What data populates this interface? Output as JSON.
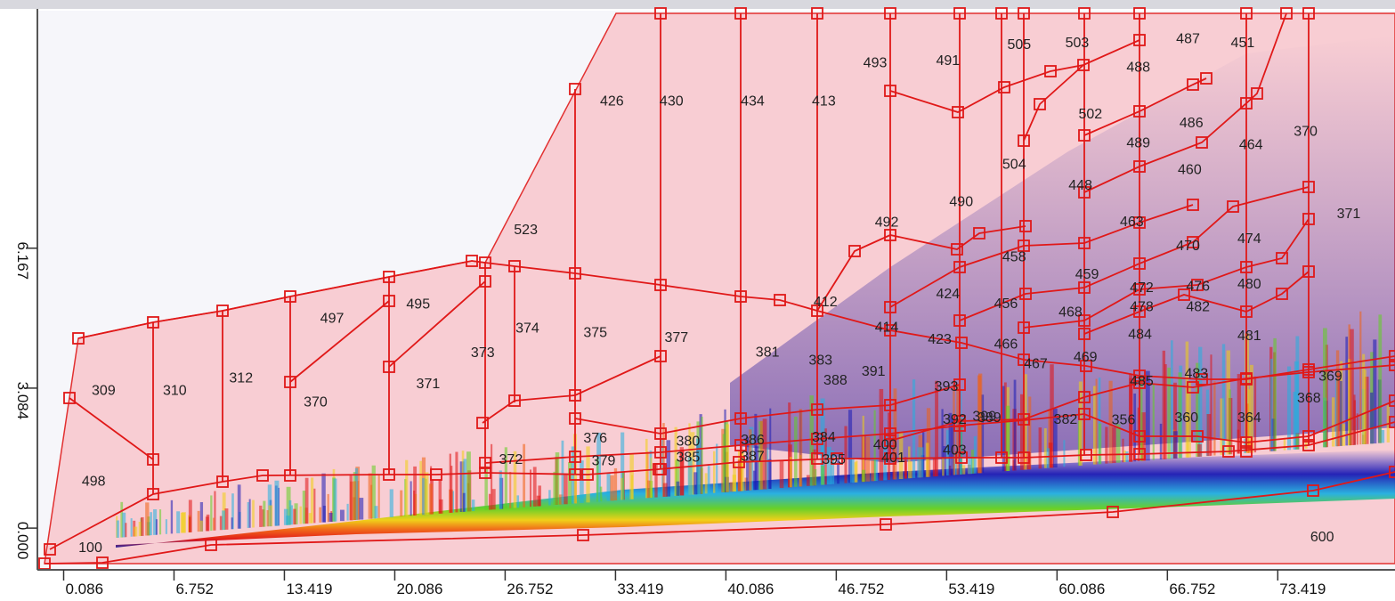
{
  "chart_data": {
    "type": "heatmap",
    "title": "",
    "xlabel": "",
    "ylabel": "",
    "xlim": [
      -1.5,
      80.5
    ],
    "ylim": [
      -0.9,
      11.4
    ],
    "x_ticks": [
      "0.086",
      "6.752",
      "13.419",
      "20.086",
      "26.752",
      "33.419",
      "40.086",
      "46.752",
      "53.419",
      "60.086",
      "66.752",
      "73.419"
    ],
    "y_ticks": [
      "0.000",
      "3.084",
      "6.167"
    ],
    "x_tick_values": [
      0.086,
      6.752,
      13.419,
      20.086,
      26.752,
      33.419,
      40.086,
      46.752,
      53.419,
      60.086,
      66.752,
      73.419
    ],
    "y_tick_values": [
      0.0,
      3.084,
      6.167
    ],
    "region_labels": [
      {
        "text": "100",
        "x": 1.7,
        "y": -0.41
      },
      {
        "text": "498",
        "x": 1.9,
        "y": 1.05
      },
      {
        "text": "309",
        "x": 2.5,
        "y": 3.05
      },
      {
        "text": "310",
        "x": 6.8,
        "y": 3.05
      },
      {
        "text": "312",
        "x": 10.8,
        "y": 3.33
      },
      {
        "text": "370",
        "x": 15.3,
        "y": 2.8
      },
      {
        "text": "497",
        "x": 16.3,
        "y": 4.64
      },
      {
        "text": "371",
        "x": 22.1,
        "y": 3.2
      },
      {
        "text": "495",
        "x": 21.5,
        "y": 4.96
      },
      {
        "text": "373",
        "x": 25.4,
        "y": 3.89
      },
      {
        "text": "374",
        "x": 28.1,
        "y": 4.43
      },
      {
        "text": "523",
        "x": 28.0,
        "y": 6.59
      },
      {
        "text": "375",
        "x": 32.2,
        "y": 4.33
      },
      {
        "text": "377",
        "x": 37.1,
        "y": 4.22
      },
      {
        "text": "426",
        "x": 33.2,
        "y": 9.43
      },
      {
        "text": "430",
        "x": 36.8,
        "y": 9.43
      },
      {
        "text": "434",
        "x": 41.7,
        "y": 9.43
      },
      {
        "text": "413",
        "x": 46.0,
        "y": 9.43
      },
      {
        "text": "381",
        "x": 42.6,
        "y": 3.9
      },
      {
        "text": "383",
        "x": 45.8,
        "y": 3.72
      },
      {
        "text": "412",
        "x": 46.1,
        "y": 5.0
      },
      {
        "text": "376",
        "x": 32.2,
        "y": 2.0
      },
      {
        "text": "372",
        "x": 27.1,
        "y": 1.53
      },
      {
        "text": "379",
        "x": 32.7,
        "y": 1.5
      },
      {
        "text": "380",
        "x": 37.8,
        "y": 1.93
      },
      {
        "text": "385",
        "x": 37.8,
        "y": 1.58
      },
      {
        "text": "386",
        "x": 41.7,
        "y": 1.96
      },
      {
        "text": "387",
        "x": 41.7,
        "y": 1.6
      },
      {
        "text": "384",
        "x": 46.0,
        "y": 2.02
      },
      {
        "text": "395",
        "x": 46.6,
        "y": 1.53
      },
      {
        "text": "400",
        "x": 49.7,
        "y": 1.86
      },
      {
        "text": "401",
        "x": 50.2,
        "y": 1.57
      },
      {
        "text": "403",
        "x": 53.9,
        "y": 1.74
      },
      {
        "text": "388",
        "x": 46.7,
        "y": 3.28
      },
      {
        "text": "391",
        "x": 49.0,
        "y": 3.47
      },
      {
        "text": "393",
        "x": 53.4,
        "y": 3.14
      },
      {
        "text": "399",
        "x": 55.7,
        "y": 2.48
      },
      {
        "text": "392",
        "x": 53.9,
        "y": 2.42
      },
      {
        "text": "389",
        "x": 56.0,
        "y": 2.45
      },
      {
        "text": "414",
        "x": 49.8,
        "y": 4.45
      },
      {
        "text": "423",
        "x": 53.0,
        "y": 4.18
      },
      {
        "text": "424",
        "x": 53.5,
        "y": 5.18
      },
      {
        "text": "492",
        "x": 49.8,
        "y": 6.76
      },
      {
        "text": "490",
        "x": 54.3,
        "y": 7.21
      },
      {
        "text": "458",
        "x": 57.5,
        "y": 6.0
      },
      {
        "text": "456",
        "x": 57.0,
        "y": 4.97
      },
      {
        "text": "466",
        "x": 57.0,
        "y": 4.07
      },
      {
        "text": "467",
        "x": 58.8,
        "y": 3.64
      },
      {
        "text": "469",
        "x": 61.8,
        "y": 3.79
      },
      {
        "text": "468",
        "x": 60.9,
        "y": 4.78
      },
      {
        "text": "459",
        "x": 61.9,
        "y": 5.61
      },
      {
        "text": "448",
        "x": 61.5,
        "y": 7.57
      },
      {
        "text": "504",
        "x": 57.5,
        "y": 8.04
      },
      {
        "text": "502",
        "x": 62.1,
        "y": 9.14
      },
      {
        "text": "493",
        "x": 49.1,
        "y": 10.27
      },
      {
        "text": "491",
        "x": 53.5,
        "y": 10.32
      },
      {
        "text": "505",
        "x": 57.8,
        "y": 10.67
      },
      {
        "text": "503",
        "x": 61.3,
        "y": 10.71
      },
      {
        "text": "488",
        "x": 65.0,
        "y": 10.17
      },
      {
        "text": "487",
        "x": 68.0,
        "y": 10.8
      },
      {
        "text": "451",
        "x": 71.3,
        "y": 10.71
      },
      {
        "text": "486",
        "x": 68.2,
        "y": 8.95
      },
      {
        "text": "489",
        "x": 65.0,
        "y": 8.51
      },
      {
        "text": "464",
        "x": 71.8,
        "y": 8.47
      },
      {
        "text": "370",
        "x": 75.1,
        "y": 8.76
      },
      {
        "text": "460",
        "x": 68.1,
        "y": 7.92
      },
      {
        "text": "463",
        "x": 64.6,
        "y": 6.77
      },
      {
        "text": "470",
        "x": 68.0,
        "y": 6.24
      },
      {
        "text": "474",
        "x": 71.7,
        "y": 6.4
      },
      {
        "text": "371",
        "x": 77.7,
        "y": 6.95
      },
      {
        "text": "472",
        "x": 65.2,
        "y": 5.32
      },
      {
        "text": "476",
        "x": 68.6,
        "y": 5.35
      },
      {
        "text": "480",
        "x": 71.7,
        "y": 5.4
      },
      {
        "text": "478",
        "x": 65.2,
        "y": 4.9
      },
      {
        "text": "482",
        "x": 68.6,
        "y": 4.9
      },
      {
        "text": "484",
        "x": 65.1,
        "y": 4.29
      },
      {
        "text": "481",
        "x": 71.7,
        "y": 4.26
      },
      {
        "text": "485",
        "x": 65.2,
        "y": 3.26
      },
      {
        "text": "483",
        "x": 68.5,
        "y": 3.43
      },
      {
        "text": "369",
        "x": 76.6,
        "y": 3.37
      },
      {
        "text": "368",
        "x": 75.3,
        "y": 2.89
      },
      {
        "text": "382",
        "x": 60.6,
        "y": 2.42
      },
      {
        "text": "356",
        "x": 64.1,
        "y": 2.41
      },
      {
        "text": "360",
        "x": 67.9,
        "y": 2.45
      },
      {
        "text": "364",
        "x": 71.7,
        "y": 2.45
      },
      {
        "text": "600",
        "x": 76.1,
        "y": -0.17
      }
    ]
  }
}
